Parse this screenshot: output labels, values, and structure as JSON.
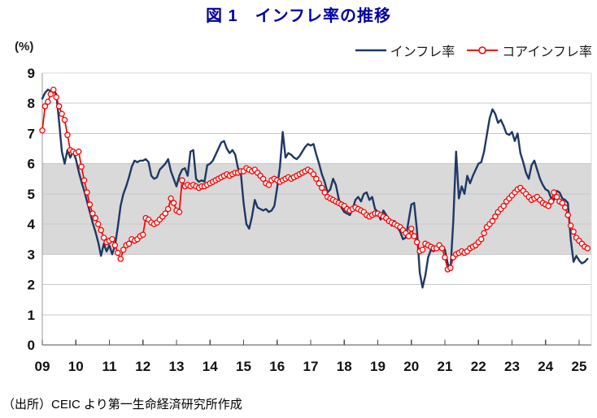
{
  "title": "図 1　インフレ率の推移",
  "y_axis_unit_label": "(%)",
  "source_note": "（出所）CEIC より第一生命経済研究所作成",
  "colors": {
    "title": "#0000A0",
    "inflation_line": "#1F3864",
    "core_inflation_line": "#FF0000",
    "shaded_band": "#D9D9D9",
    "gridline": "#C9C9C9",
    "plot_border": "#D9D9D9",
    "x_axis": "#4D4D4D",
    "y_axis": "#9A9A9A",
    "axis_text": "#111111"
  },
  "chart_data": {
    "type": "line",
    "title": "図 1　インフレ率の推移",
    "ylabel": "(%)",
    "ylim": [
      0,
      9
    ],
    "y_ticks": [
      0,
      1,
      2,
      3,
      4,
      5,
      6,
      7,
      8,
      9
    ],
    "x_tick_labels": [
      "09",
      "10",
      "11",
      "12",
      "13",
      "14",
      "15",
      "16",
      "17",
      "18",
      "19",
      "20",
      "21",
      "22",
      "23",
      "24",
      "25"
    ],
    "x_start": "2009-01",
    "x_end": "2025-04",
    "frequency": "monthly",
    "grid": true,
    "legend_position": "top-right",
    "shaded_band": {
      "from": 3,
      "to": 6
    },
    "series": [
      {
        "name": "インフレ率",
        "color": "#1F3864",
        "marker": "none",
        "values": [
          8.15,
          8.35,
          8.45,
          8.4,
          8.45,
          8.3,
          7.4,
          6.4,
          6.0,
          6.45,
          6.2,
          6.4,
          6.15,
          5.75,
          5.4,
          5.1,
          4.75,
          4.4,
          4.05,
          3.75,
          3.4,
          2.95,
          3.35,
          3.1,
          3.3,
          3.0,
          3.3,
          3.9,
          4.6,
          5.0,
          5.25,
          5.55,
          5.9,
          6.1,
          6.05,
          6.1,
          6.1,
          6.15,
          6.05,
          5.6,
          5.5,
          5.55,
          5.8,
          5.9,
          6.0,
          6.15,
          5.75,
          5.5,
          5.25,
          5.6,
          5.8,
          5.85,
          5.6,
          6.4,
          6.45,
          5.5,
          5.4,
          5.45,
          5.4,
          5.95,
          6.0,
          6.1,
          6.3,
          6.5,
          6.7,
          6.75,
          6.5,
          6.35,
          6.45,
          6.3,
          5.85,
          5.7,
          4.7,
          4.0,
          3.85,
          4.25,
          4.8,
          4.55,
          4.5,
          4.45,
          4.5,
          4.4,
          4.45,
          4.6,
          5.2,
          5.9,
          7.05,
          6.2,
          6.35,
          6.3,
          6.2,
          6.15,
          6.25,
          6.4,
          6.55,
          6.65,
          6.6,
          6.65,
          6.3,
          6.0,
          5.65,
          5.4,
          5.05,
          5.15,
          5.5,
          5.3,
          4.85,
          4.55,
          4.4,
          4.35,
          4.3,
          4.5,
          4.8,
          4.9,
          4.75,
          5.0,
          5.05,
          4.8,
          4.9,
          4.5,
          4.4,
          4.15,
          4.45,
          4.3,
          4.15,
          3.95,
          4.1,
          3.9,
          3.75,
          3.5,
          3.55,
          4.1,
          4.65,
          4.7,
          3.8,
          2.4,
          1.9,
          2.3,
          2.9,
          3.15,
          3.1,
          3.2,
          3.3,
          3.25,
          3.15,
          2.7,
          2.5,
          4.1,
          6.4,
          4.85,
          5.25,
          5.0,
          5.6,
          5.35,
          5.6,
          5.8,
          6.0,
          6.05,
          6.4,
          6.95,
          7.5,
          7.8,
          7.65,
          7.35,
          7.45,
          7.25,
          7.0,
          6.95,
          7.05,
          6.75,
          7.0,
          6.35,
          6.05,
          5.7,
          5.5,
          5.95,
          6.1,
          5.8,
          5.5,
          5.3,
          5.15,
          5.1,
          4.85,
          4.8,
          5.1,
          5.05,
          4.85,
          4.8,
          4.7,
          3.5,
          2.75,
          2.95,
          2.8,
          2.7,
          2.75,
          2.85
        ]
      },
      {
        "name": "コアインフレ率",
        "color": "#FF0000",
        "marker": "circle",
        "marker_fill": "#FFFFFF",
        "values": [
          7.1,
          7.9,
          8.05,
          8.3,
          8.45,
          8.2,
          7.9,
          7.65,
          7.45,
          6.95,
          6.45,
          6.4,
          6.35,
          6.4,
          5.9,
          5.45,
          5.05,
          4.65,
          4.35,
          4.2,
          4.0,
          3.8,
          3.55,
          3.4,
          3.45,
          3.5,
          3.3,
          3.05,
          2.85,
          3.15,
          3.3,
          3.35,
          3.5,
          3.45,
          3.5,
          3.6,
          3.65,
          4.2,
          4.15,
          4.05,
          4.0,
          4.05,
          4.15,
          4.25,
          4.35,
          4.5,
          4.85,
          4.7,
          4.45,
          4.4,
          5.45,
          5.25,
          5.3,
          5.25,
          5.3,
          5.25,
          5.2,
          5.25,
          5.25,
          5.3,
          5.35,
          5.4,
          5.45,
          5.5,
          5.55,
          5.6,
          5.65,
          5.6,
          5.65,
          5.7,
          5.7,
          5.75,
          5.75,
          5.85,
          5.8,
          5.75,
          5.8,
          5.7,
          5.6,
          5.5,
          5.35,
          5.3,
          5.45,
          5.5,
          5.45,
          5.4,
          5.45,
          5.5,
          5.55,
          5.5,
          5.55,
          5.6,
          5.65,
          5.7,
          5.75,
          5.8,
          5.75,
          5.65,
          5.5,
          5.35,
          5.2,
          5.05,
          4.9,
          4.85,
          4.8,
          4.75,
          4.7,
          4.65,
          4.6,
          4.5,
          4.45,
          4.5,
          4.55,
          4.5,
          4.45,
          4.4,
          4.3,
          4.25,
          4.3,
          4.35,
          4.35,
          4.3,
          4.25,
          4.2,
          4.1,
          4.05,
          4.0,
          3.95,
          3.9,
          3.8,
          3.7,
          3.6,
          3.85,
          3.6,
          3.4,
          3.1,
          3.15,
          3.35,
          3.3,
          3.25,
          3.2,
          3.2,
          3.3,
          3.2,
          2.9,
          2.5,
          2.55,
          2.9,
          3.0,
          3.05,
          3.1,
          3.05,
          3.1,
          3.2,
          3.25,
          3.3,
          3.4,
          3.5,
          3.7,
          3.9,
          4.0,
          4.1,
          4.25,
          4.4,
          4.5,
          4.6,
          4.75,
          4.85,
          4.95,
          5.05,
          5.15,
          5.2,
          5.1,
          5.0,
          4.9,
          4.8,
          4.85,
          4.9,
          4.8,
          4.7,
          4.65,
          4.6,
          4.75,
          5.05,
          4.9,
          4.75,
          4.7,
          4.55,
          4.3,
          3.95,
          3.75,
          3.55,
          3.45,
          3.35,
          3.25,
          3.2
        ]
      }
    ]
  }
}
